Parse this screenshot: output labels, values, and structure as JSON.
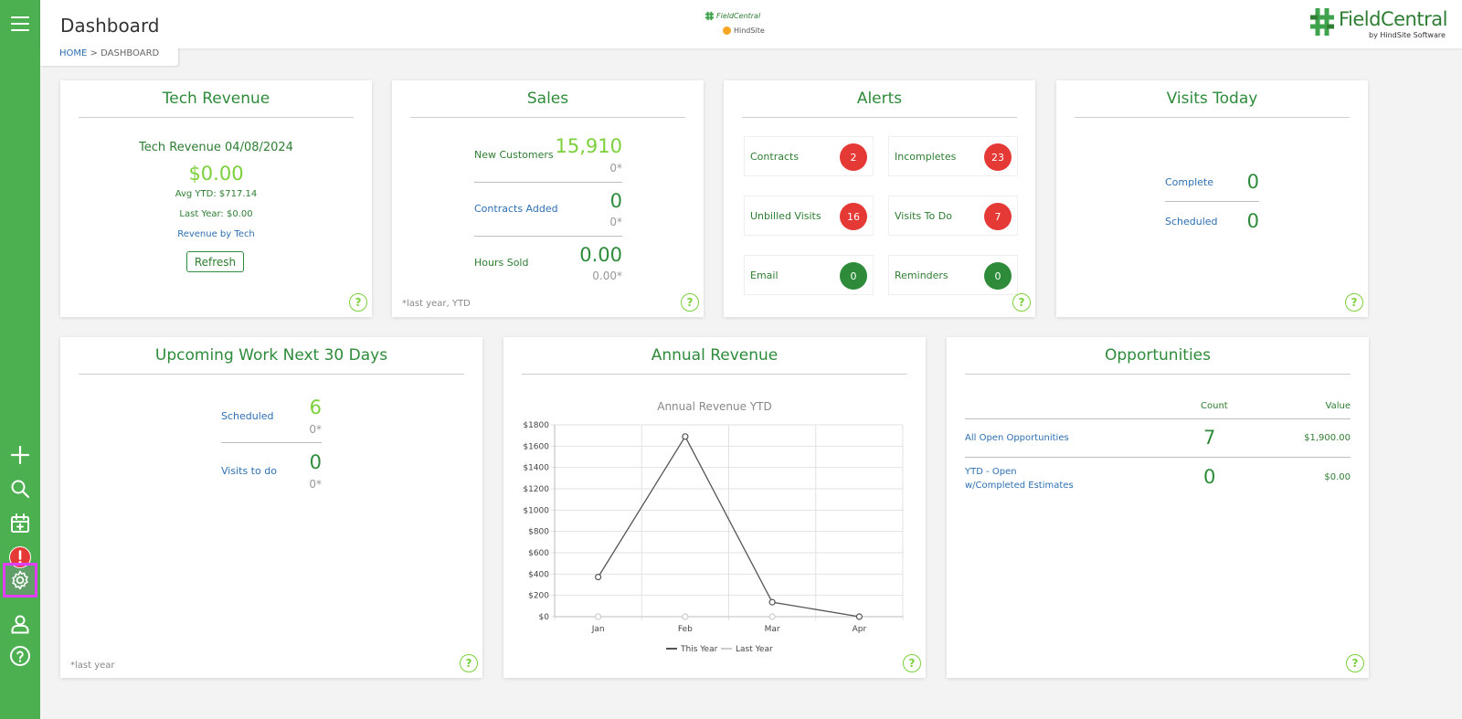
{
  "header": {
    "title": "Dashboard",
    "breadcrumb": {
      "home": "HOME",
      "separator": ">",
      "current": "DASHBOARD"
    },
    "center_logo": {
      "line1": "FieldCentral",
      "line2": "HindSite"
    },
    "brand": {
      "name": "FieldCentral",
      "sub": "by HindSite Software"
    }
  },
  "sidebar": {
    "items": [
      {
        "icon": "menu-icon"
      },
      {
        "icon": "plus-icon"
      },
      {
        "icon": "search-icon"
      },
      {
        "icon": "calendar-add-icon"
      },
      {
        "icon": "alert-icon"
      },
      {
        "icon": "gear-icon"
      },
      {
        "icon": "user-icon"
      },
      {
        "icon": "help-icon"
      }
    ]
  },
  "tech_revenue": {
    "title": "Tech Revenue",
    "subtitle": "Tech Revenue 04/08/2024",
    "amount": "$0.00",
    "avg_ytd": "Avg YTD: $717.14",
    "last_year": "Last Year: $0.00",
    "link": "Revenue by Tech",
    "refresh_label": "Refresh",
    "help": "?"
  },
  "sales": {
    "title": "Sales",
    "rows": [
      {
        "label": "New Customers",
        "value": "15,910",
        "prior": "0*"
      },
      {
        "label": "Contracts Added",
        "value": "0",
        "prior": "0*"
      },
      {
        "label": "Hours Sold",
        "value": "0.00",
        "prior": "0.00*"
      }
    ],
    "footnote": "*last year, YTD",
    "help": "?"
  },
  "alerts": {
    "title": "Alerts",
    "items": [
      {
        "label": "Contracts",
        "count": "2",
        "color": "#e53935"
      },
      {
        "label": "Incompletes",
        "count": "23",
        "color": "#e53935"
      },
      {
        "label": "Unbilled Visits",
        "count": "16",
        "color": "#e53935"
      },
      {
        "label": "Visits To Do",
        "count": "7",
        "color": "#e53935"
      },
      {
        "label": "Email",
        "count": "0",
        "color": "#2e8b3a"
      },
      {
        "label": "Reminders",
        "count": "0",
        "color": "#2e8b3a"
      }
    ],
    "help": "?"
  },
  "visits_today": {
    "title": "Visits Today",
    "rows": [
      {
        "label": "Complete",
        "value": "0"
      },
      {
        "label": "Scheduled",
        "value": "0"
      }
    ],
    "help": "?"
  },
  "upcoming_work": {
    "title": "Upcoming Work Next 30 Days",
    "rows": [
      {
        "label": "Scheduled",
        "value": "6",
        "prior": "0*"
      },
      {
        "label": "Visits to do",
        "value": "0",
        "prior": "0*"
      }
    ],
    "footnote": "*last year",
    "help": "?"
  },
  "annual_revenue": {
    "title": "Annual Revenue",
    "help": "?"
  },
  "opportunities": {
    "title": "Opportunities",
    "columns": {
      "count": "Count",
      "value": "Value"
    },
    "rows": [
      {
        "label": "All Open Opportunities",
        "count": "7",
        "value": "$1,900.00"
      },
      {
        "label": "YTD - Open w/Completed Estimates",
        "count": "0",
        "value": "$0.00"
      }
    ],
    "help": "?"
  },
  "chart_data": {
    "type": "line",
    "title": "Annual Revenue YTD",
    "categories": [
      "Jan",
      "Feb",
      "Mar",
      "Apr"
    ],
    "series": [
      {
        "name": "This Year",
        "values": [
          372,
          1690,
          136,
          0
        ],
        "color": "#555555"
      },
      {
        "name": "Last Year",
        "values": [
          0,
          0,
          0,
          0
        ],
        "color": "#cccccc"
      }
    ],
    "ylim": [
      0,
      1800
    ],
    "yticks": [
      0,
      200,
      400,
      600,
      800,
      1000,
      1200,
      1400,
      1600,
      1800
    ],
    "ytick_labels": [
      "$0",
      "$200",
      "$400",
      "$600",
      "$800",
      "$1000",
      "$1200",
      "$1400",
      "$1600",
      "$1800"
    ],
    "grid": true,
    "legend": "bottom"
  }
}
